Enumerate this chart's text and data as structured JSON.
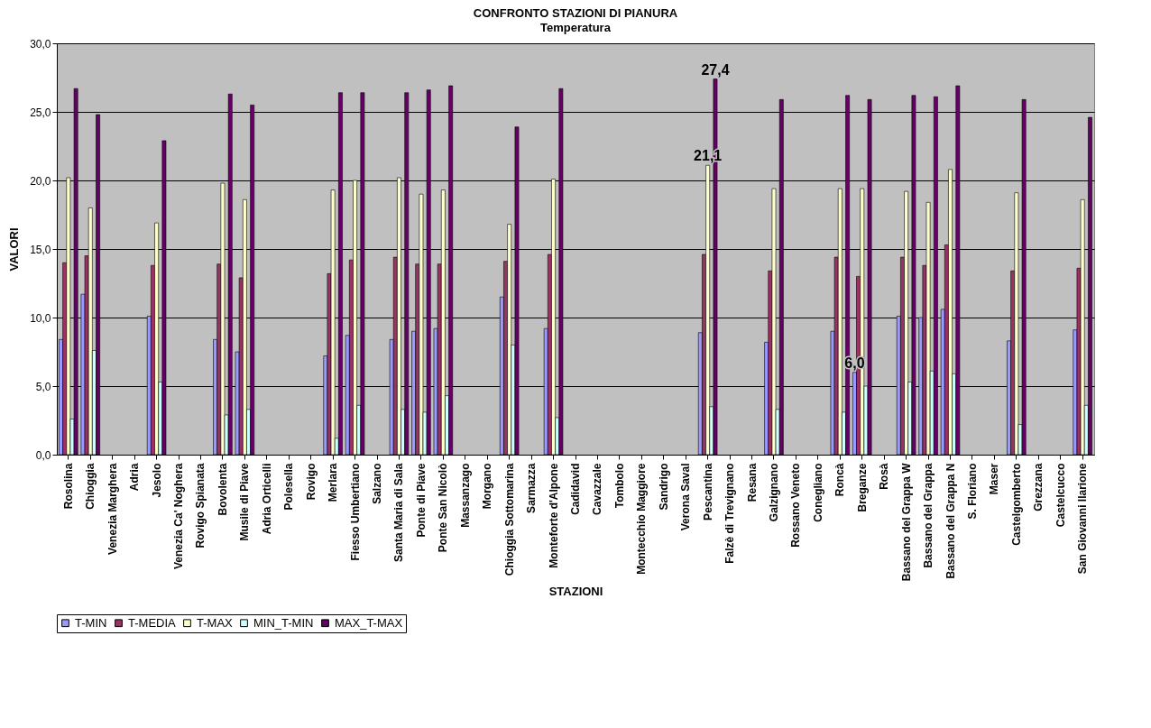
{
  "chart_data": {
    "type": "bar",
    "title": "CONFRONTO STAZIONI DI PIANURA",
    "subtitle": "Temperatura",
    "xlabel": "STAZIONI",
    "ylabel": "VALORI",
    "categories": [
      "Rosolina",
      "Chioggia",
      "Venezia Marghera",
      "Adria",
      "Jesolo",
      "Venezia Ca' Noghera",
      "Rovigo Spianata",
      "Bovolenta",
      "Musile di Piave",
      "Adria Orticelli",
      "Polesella",
      "Rovigo",
      "Merlara",
      "Fiesso Umbertiano",
      "Salzano",
      "Santa Maria di Sala",
      "Ponte di Piave",
      "Ponte San Nicolò",
      "Massanzago",
      "Morgano",
      "Chioggia Sottomarina",
      "Sarmazza",
      "Monteforte d'Alpone",
      "Cadidavid",
      "Cavazzale",
      "Tombolo",
      "Montecchio Maggiore",
      "Sandrigo",
      "Verona Saval",
      "Pescantina",
      "Falzè di Trevignano",
      "Resana",
      "Galzignano",
      "Rossano Veneto",
      "Conegliano",
      "Roncà",
      "Breganze",
      "Rosà",
      "Bassano del Grappa W",
      "Bassano del Grappa",
      "Bassano del Grappa N",
      "S. Floriano",
      "Maser",
      "Castelgomberto",
      "Grezzana",
      "Castelcucco",
      "San Giovanni Ilarione"
    ],
    "series": [
      {
        "name": "T-MIN",
        "color": "#9999ff",
        "values": [
          8.4,
          11.7,
          null,
          null,
          10.1,
          null,
          null,
          8.4,
          7.5,
          null,
          null,
          null,
          7.2,
          8.7,
          null,
          8.4,
          9.0,
          9.2,
          null,
          null,
          11.5,
          null,
          9.2,
          null,
          null,
          null,
          null,
          null,
          null,
          8.9,
          null,
          null,
          8.2,
          null,
          null,
          9.0,
          6.0,
          null,
          10.1,
          10.0,
          10.6,
          null,
          null,
          8.3,
          null,
          null,
          9.1
        ],
        "value_labels": [
          null,
          null,
          null,
          null,
          null,
          null,
          null,
          null,
          null,
          null,
          null,
          null,
          null,
          null,
          null,
          null,
          null,
          null,
          null,
          null,
          null,
          null,
          null,
          null,
          null,
          null,
          null,
          null,
          null,
          null,
          null,
          null,
          null,
          null,
          null,
          null,
          "6,0",
          null,
          null,
          null,
          null,
          null,
          null,
          null,
          null,
          null,
          null
        ]
      },
      {
        "name": "T-MEDIA",
        "color": "#993366",
        "values": [
          14.0,
          14.5,
          null,
          null,
          13.8,
          null,
          null,
          13.9,
          12.9,
          null,
          null,
          null,
          13.2,
          14.2,
          null,
          14.4,
          13.9,
          13.9,
          null,
          null,
          14.1,
          null,
          14.6,
          null,
          null,
          null,
          null,
          null,
          null,
          14.6,
          null,
          null,
          13.4,
          null,
          null,
          14.4,
          13.0,
          null,
          14.4,
          13.8,
          15.3,
          null,
          null,
          13.4,
          null,
          null,
          13.6
        ]
      },
      {
        "name": "T-MAX",
        "color": "#ffffcc",
        "values": [
          20.2,
          18.0,
          null,
          null,
          16.9,
          null,
          null,
          19.8,
          18.6,
          null,
          null,
          null,
          19.3,
          20.0,
          null,
          20.2,
          19.0,
          19.3,
          null,
          null,
          16.8,
          null,
          20.1,
          null,
          null,
          null,
          null,
          null,
          null,
          21.1,
          null,
          null,
          19.4,
          null,
          null,
          19.4,
          19.4,
          null,
          19.2,
          18.4,
          20.8,
          null,
          null,
          19.1,
          null,
          null,
          18.6
        ],
        "value_labels": [
          null,
          null,
          null,
          null,
          null,
          null,
          null,
          null,
          null,
          null,
          null,
          null,
          null,
          null,
          null,
          null,
          null,
          null,
          null,
          null,
          null,
          null,
          null,
          null,
          null,
          null,
          null,
          null,
          null,
          "21,1",
          null,
          null,
          null,
          null,
          null,
          null,
          null,
          null,
          null,
          null,
          null,
          null,
          null,
          null,
          null,
          null,
          null
        ]
      },
      {
        "name": "MIN_T-MIN",
        "color": "#ccffff",
        "values": [
          2.6,
          7.6,
          null,
          null,
          5.3,
          null,
          null,
          2.9,
          3.3,
          null,
          null,
          null,
          1.2,
          3.6,
          null,
          3.3,
          3.1,
          4.3,
          null,
          null,
          8.0,
          null,
          2.7,
          null,
          null,
          null,
          null,
          null,
          null,
          3.5,
          null,
          null,
          3.3,
          null,
          null,
          3.1,
          5.0,
          null,
          5.3,
          6.1,
          5.9,
          null,
          null,
          2.2,
          null,
          null,
          3.6
        ]
      },
      {
        "name": "MAX_T-MAX",
        "color": "#660066",
        "values": [
          26.7,
          24.8,
          null,
          null,
          22.9,
          null,
          null,
          26.3,
          25.5,
          null,
          null,
          null,
          26.4,
          26.4,
          null,
          26.4,
          26.6,
          26.9,
          null,
          null,
          23.9,
          null,
          26.7,
          null,
          null,
          null,
          null,
          null,
          null,
          27.4,
          null,
          null,
          25.9,
          null,
          null,
          26.2,
          25.9,
          null,
          26.2,
          26.1,
          26.9,
          null,
          null,
          25.9,
          null,
          null,
          24.6
        ],
        "value_labels": [
          null,
          null,
          null,
          null,
          null,
          null,
          null,
          null,
          null,
          null,
          null,
          null,
          null,
          null,
          null,
          null,
          null,
          null,
          null,
          null,
          null,
          null,
          null,
          null,
          null,
          null,
          null,
          null,
          null,
          "27,4",
          null,
          null,
          null,
          null,
          null,
          null,
          null,
          null,
          null,
          null,
          null,
          null,
          null,
          null,
          null,
          null,
          null
        ]
      }
    ],
    "ylim": [
      0,
      30
    ],
    "yticks": [
      {
        "value": 0,
        "label": "0,0"
      },
      {
        "value": 5,
        "label": "5,0"
      },
      {
        "value": 10,
        "label": "10,0"
      },
      {
        "value": 15,
        "label": "15,0"
      },
      {
        "value": 20,
        "label": "20,0"
      },
      {
        "value": 25,
        "label": "25,0"
      },
      {
        "value": 30,
        "label": "30,0"
      }
    ],
    "grid": "y",
    "legend": "bottom"
  }
}
